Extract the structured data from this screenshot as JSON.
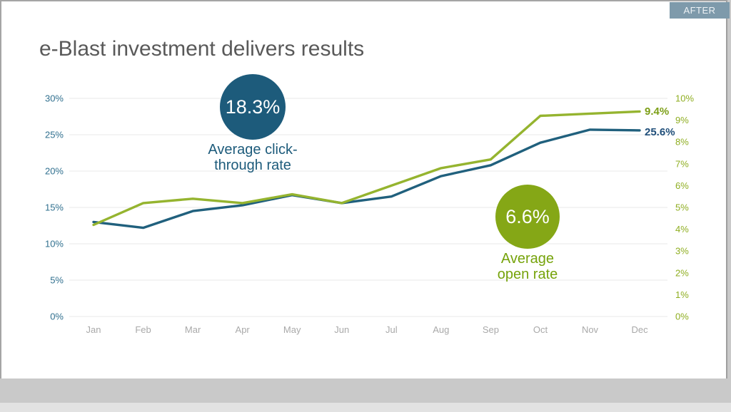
{
  "window": {
    "after_tab": "AFTER"
  },
  "slide": {
    "title": "e-Blast investment delivers results"
  },
  "callouts": {
    "click_through": {
      "value": "18.3%",
      "label_line1": "Average click-",
      "label_line2": "through rate"
    },
    "open_rate": {
      "value": "6.6%",
      "label_line1": "Average",
      "label_line2": "open rate"
    }
  },
  "chart_data": {
    "type": "line",
    "title": "",
    "categories": [
      "Jan",
      "Feb",
      "Mar",
      "Apr",
      "May",
      "Jun",
      "Jul",
      "Aug",
      "Sep",
      "Oct",
      "Nov",
      "Dec"
    ],
    "series": [
      {
        "name": "Average click-through rate",
        "axis": "left",
        "color": "#20607d",
        "values": [
          13.0,
          12.2,
          14.5,
          15.3,
          16.7,
          15.6,
          16.5,
          19.3,
          20.8,
          23.9,
          25.7,
          25.6
        ],
        "end_label": "25.6%"
      },
      {
        "name": "Average open rate",
        "axis": "right",
        "color": "#95b42f",
        "values": [
          4.2,
          5.2,
          5.4,
          5.2,
          5.6,
          5.2,
          6.0,
          6.8,
          7.2,
          9.2,
          9.3,
          9.4
        ],
        "end_label": "9.4%"
      }
    ],
    "left_axis": {
      "min": 0,
      "max": 30,
      "step": 5,
      "tick_labels": [
        "0%",
        "5%",
        "10%",
        "15%",
        "20%",
        "25%",
        "30%"
      ],
      "color": "#31708f"
    },
    "right_axis": {
      "min": 0,
      "max": 10,
      "step": 1,
      "tick_labels": [
        "0%",
        "1%",
        "2%",
        "3%",
        "4%",
        "5%",
        "6%",
        "7%",
        "8%",
        "9%",
        "10%"
      ],
      "color": "#8fae21"
    },
    "x_axis": {
      "color": "#a9a9a9"
    },
    "grid": "horizontal-only",
    "gridline_color": "#eaeaea",
    "legend_position": "none"
  },
  "colors": {
    "after_tab_bg": "#7e9aab",
    "title_text": "#595959",
    "click_through_circle": "#1d5b7b",
    "click_through_text": "#1d5b7b",
    "click_through_end_label": "#1f4e79",
    "open_rate_circle": "#85a716",
    "open_rate_text": "#76a30b",
    "open_rate_end_label": "#7d9f17"
  }
}
